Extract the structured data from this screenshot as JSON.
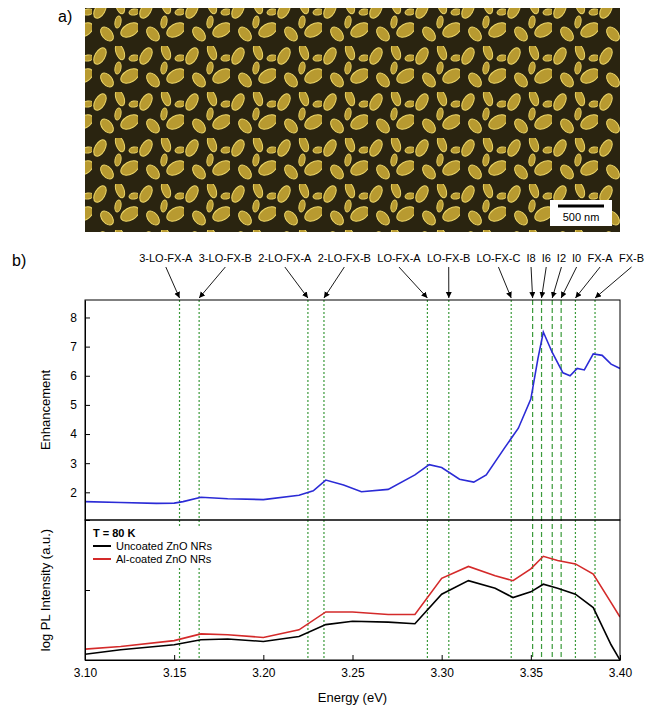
{
  "panels": [
    {
      "label": "a)",
      "scale_bar": "500 nm"
    },
    {
      "label": "b)"
    }
  ],
  "chart_data": [
    {
      "type": "line",
      "ylabel": "Enhancement",
      "x": [
        3.1,
        3.12,
        3.14,
        3.15,
        3.155,
        3.165,
        3.18,
        3.2,
        3.22,
        3.228,
        3.235,
        3.245,
        3.255,
        3.27,
        3.285,
        3.293,
        3.3,
        3.31,
        3.318,
        3.325,
        3.335,
        3.343,
        3.35,
        3.354,
        3.357,
        3.362,
        3.368,
        3.372,
        3.376,
        3.38,
        3.385,
        3.39,
        3.395,
        3.4
      ],
      "values": [
        1.68,
        1.65,
        1.62,
        1.63,
        1.68,
        1.83,
        1.78,
        1.75,
        1.9,
        2.05,
        2.42,
        2.25,
        2.02,
        2.1,
        2.6,
        2.95,
        2.85,
        2.45,
        2.35,
        2.6,
        3.5,
        4.2,
        5.2,
        6.6,
        7.5,
        6.8,
        6.1,
        6.0,
        6.25,
        6.2,
        6.75,
        6.7,
        6.4,
        6.25
      ],
      "color": "#2b2bd6",
      "xlim": [
        3.1,
        3.4
      ],
      "ylim": [
        1.05,
        8.6
      ],
      "yticks": [
        2,
        3,
        4,
        5,
        6,
        7,
        8
      ],
      "tick_labels": "y",
      "annotations": [
        {
          "label": "3-LO-FX-A",
          "x": 3.153,
          "line_style": "dotted"
        },
        {
          "label": "3-LO-FX-B",
          "x": 3.164,
          "line_style": "dotted"
        },
        {
          "label": "2-LO-FX-A",
          "x": 3.225,
          "line_style": "dotted"
        },
        {
          "label": "2-LO-FX-B",
          "x": 3.234,
          "line_style": "dotted"
        },
        {
          "label": "LO-FX-A",
          "x": 3.292,
          "line_style": "dotted"
        },
        {
          "label": "LO-FX-B",
          "x": 3.304,
          "line_style": "dotted"
        },
        {
          "label": "LO-FX-C",
          "x": 3.339,
          "line_style": "dotted"
        },
        {
          "label": "I8",
          "x": 3.351,
          "line_style": "dashed"
        },
        {
          "label": "I6",
          "x": 3.356,
          "line_style": "dashed"
        },
        {
          "label": "I2",
          "x": 3.362,
          "line_style": "dashed"
        },
        {
          "label": "I0",
          "x": 3.367,
          "line_style": "dashed"
        },
        {
          "label": "FX-A",
          "x": 3.375,
          "line_style": "dotted"
        },
        {
          "label": "FX-B",
          "x": 3.386,
          "line_style": "dotted"
        }
      ]
    },
    {
      "type": "line",
      "xlabel": "Energy (eV)",
      "ylabel": "log PL Intensity (a.u.)",
      "x": [
        3.1,
        3.12,
        3.15,
        3.165,
        3.18,
        3.2,
        3.22,
        3.235,
        3.25,
        3.27,
        3.285,
        3.3,
        3.315,
        3.33,
        3.34,
        3.35,
        3.357,
        3.365,
        3.375,
        3.385,
        3.395,
        3.4
      ],
      "series": [
        {
          "name": "Uncoated ZnO NRs",
          "color": "#000000",
          "values": [
            1.21,
            1.4,
            1.65,
            1.95,
            2.0,
            1.84,
            2.17,
            3.2,
            3.58,
            3.48,
            3.3,
            8.7,
            13.6,
            10.6,
            7.8,
            9.4,
            12.1,
            10.6,
            8.7,
            5.6,
            1.65,
            1.0
          ]
        },
        {
          "name": "Al-coated ZnO NRs",
          "color": "#d42a2a",
          "values": [
            1.43,
            1.56,
            1.89,
            2.36,
            2.3,
            2.1,
            2.7,
            4.86,
            4.86,
            4.47,
            4.47,
            14.7,
            21.7,
            16.0,
            13.6,
            20.0,
            30.3,
            26.4,
            23.6,
            16.9,
            6.6,
            4.1
          ]
        }
      ],
      "xlim": [
        3.1,
        3.4
      ],
      "xticks": [
        {
          "value": 3.1,
          "label": "3.10"
        },
        {
          "value": 3.15,
          "label": "3.15"
        },
        {
          "value": 3.2,
          "label": "3.20"
        },
        {
          "value": 3.25,
          "label": "3.25"
        },
        {
          "value": 3.3,
          "label": "3.30"
        },
        {
          "value": 3.35,
          "label": "3.35"
        },
        {
          "value": 3.4,
          "label": "3.40"
        }
      ],
      "ylim": [
        1,
        100
      ],
      "yticks": [
        1,
        10,
        100
      ],
      "log": "y",
      "tick_labels": "x",
      "legend": "upper left",
      "annotations": [
        {
          "label": "T = 80 K"
        }
      ]
    }
  ]
}
